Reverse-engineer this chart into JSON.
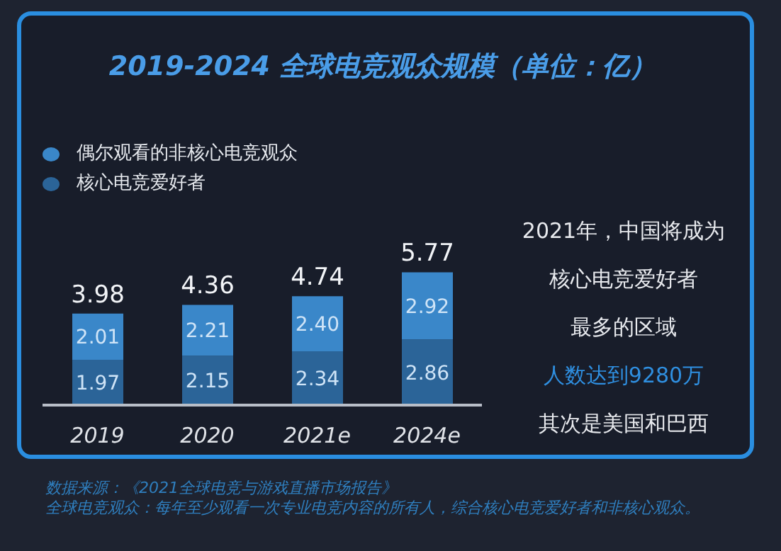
{
  "chart_data": {
    "type": "bar",
    "title": "2019-2024 全球电竞观众规模（单位：亿）",
    "categories": [
      "2019",
      "2020",
      "2021e",
      "2024e"
    ],
    "stacked": true,
    "legend": "top left",
    "series": [
      {
        "name": "核心电竞爱好者",
        "color": "#2b6498",
        "values": [
          1.97,
          2.15,
          2.34,
          2.86
        ],
        "value_labels": [
          "1.97",
          "2.15",
          "2.34",
          "2.86"
        ]
      },
      {
        "name": "偶尔观看的非核心电竞观众",
        "color": "#3a87c9",
        "values": [
          2.01,
          2.21,
          2.4,
          2.92
        ],
        "value_labels": [
          "2.01",
          "2.21",
          "2.40",
          "2.92"
        ]
      }
    ],
    "totals": [
      "3.98",
      "4.36",
      "4.74",
      "5.77"
    ],
    "annotations": [
      "2021年，中国将成为",
      "核心电竞爱好者",
      "最多的区域",
      "人数达到9280万",
      "其次是美国和巴西",
      "数据来源：《2021全球电竞与游戏直播市场报告》",
      "全球电竞观众：每年至少观看一次专业电竞内容的所有人，综合核心电竞爱好者和非核心观众。"
    ]
  }
}
